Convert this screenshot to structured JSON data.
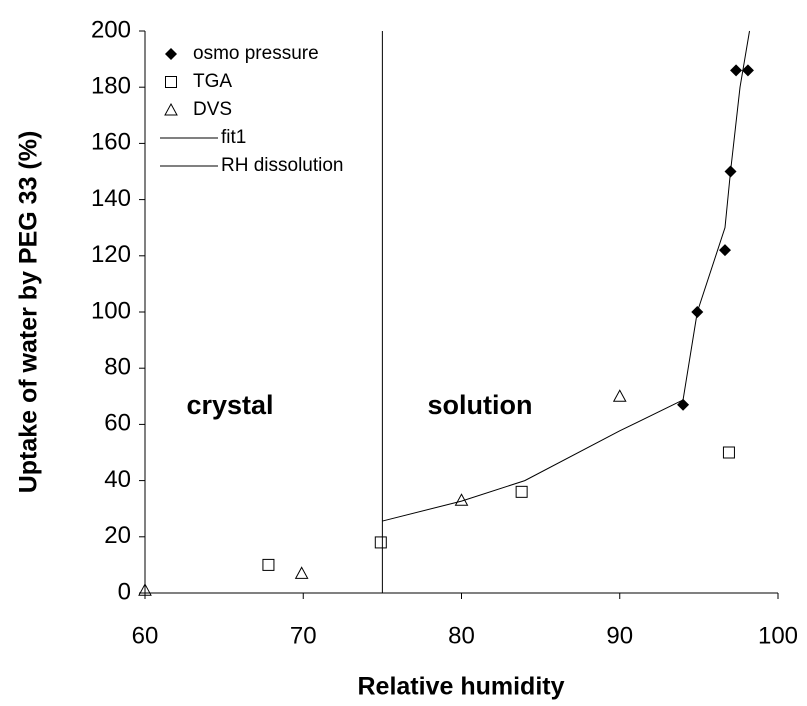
{
  "chart_data": {
    "type": "scatter",
    "xlabel": "Relative humidity",
    "ylabel": "Uptake of water by PEG 33 (%)",
    "xlim": [
      60,
      100
    ],
    "xticks": [
      60,
      70,
      80,
      90,
      100
    ],
    "ylim": [
      0,
      200
    ],
    "yticks": [
      0,
      20,
      40,
      60,
      80,
      100,
      120,
      140,
      160,
      180,
      200
    ],
    "grid": false,
    "legend": "upper left",
    "annotations": [
      "crystal",
      "solution"
    ],
    "series": [
      {
        "name": "osmo  pressure",
        "marker": "diamond",
        "color": "#000000",
        "x": [
          94.0,
          94.9,
          96.65,
          97.0,
          97.35,
          98.1
        ],
        "y": [
          67,
          100,
          122,
          150,
          186,
          186
        ]
      },
      {
        "name": "TGA",
        "marker": "square",
        "color": "#000000",
        "x": [
          67.8,
          74.9,
          83.8,
          96.9
        ],
        "y": [
          10,
          18,
          36,
          50
        ]
      },
      {
        "name": "DVS",
        "marker": "triangle",
        "color": "#000000",
        "x": [
          60,
          69.9,
          80,
          90
        ],
        "y": [
          1,
          7,
          33,
          70
        ]
      },
      {
        "name": "fit1",
        "marker": "line",
        "color": "#000000",
        "x": [
          75,
          80,
          84,
          90,
          94,
          94.9,
          96.65,
          97.0,
          97.6,
          98.2
        ],
        "y": [
          25.6,
          32.7,
          40,
          57.7,
          68.7,
          100,
          130,
          150,
          180,
          200
        ]
      },
      {
        "name": "RH dissolution",
        "marker": "line",
        "color": "#000000",
        "x": [
          75,
          75
        ],
        "y": [
          0,
          200
        ]
      }
    ]
  }
}
